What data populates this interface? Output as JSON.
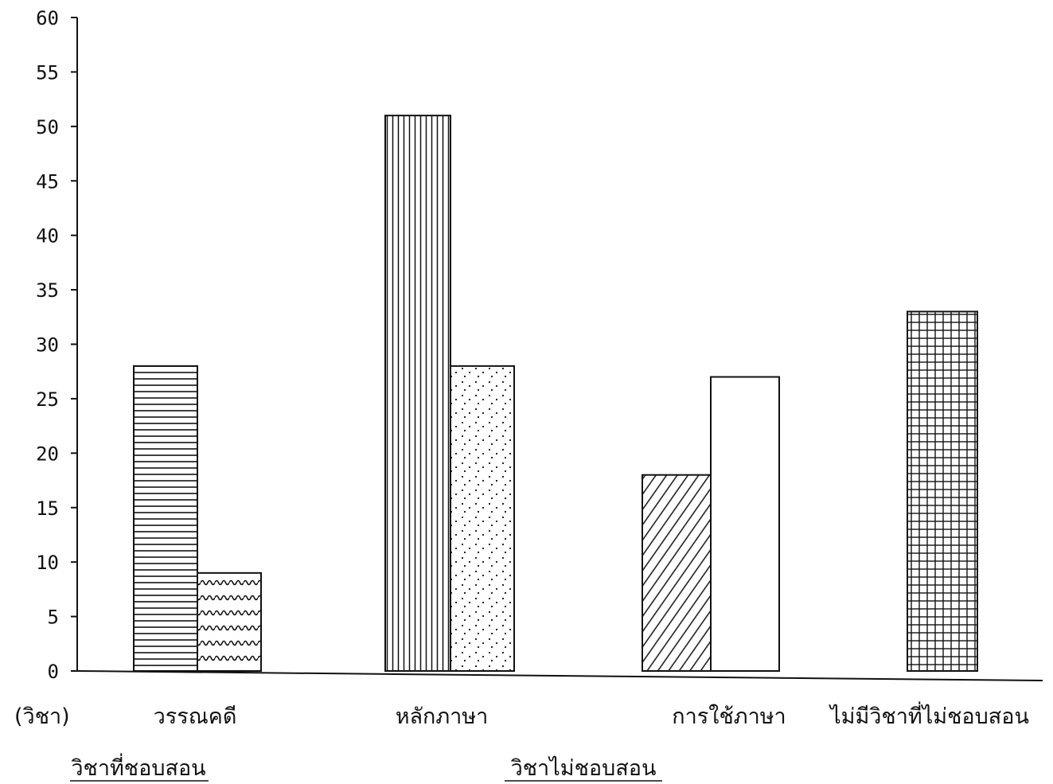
{
  "chart_data": {
    "type": "bar",
    "unit_label": "(วิชา)",
    "ylim": [
      0,
      60
    ],
    "yticks": [
      0,
      5,
      10,
      15,
      20,
      25,
      30,
      35,
      40,
      45,
      50,
      55,
      60
    ],
    "categories": [
      "วรรณคดี",
      "หลักภาษา",
      "การใช้ภาษา",
      "ไม่มีวิชาที่ไม่ชอบสอน"
    ],
    "series": [
      {
        "name": "วิชาที่ชอบสอน",
        "values": [
          28,
          51,
          18,
          null
        ]
      },
      {
        "name": "วิชาไม่ชอบสอน",
        "values": [
          9,
          28,
          27,
          33
        ]
      }
    ],
    "grid": false
  }
}
